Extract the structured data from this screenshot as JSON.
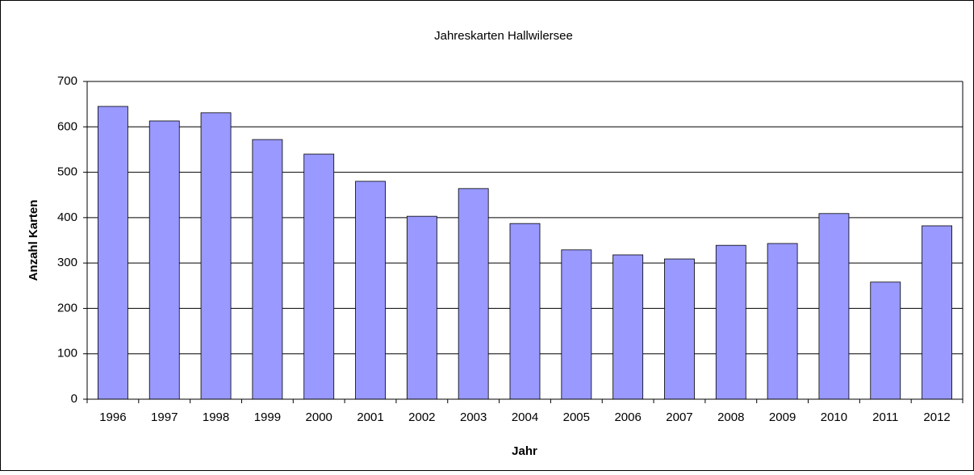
{
  "chart_data": {
    "type": "bar",
    "title": "Jahreskarten Hallwilersee",
    "x_label": "Jahr",
    "y_label": "Anzahl Karten",
    "categories": [
      "1996",
      "1997",
      "1998",
      "1999",
      "2000",
      "2001",
      "2002",
      "2003",
      "2004",
      "2005",
      "2006",
      "2007",
      "2008",
      "2009",
      "2010",
      "2011",
      "2012"
    ],
    "values": [
      645,
      613,
      631,
      572,
      540,
      480,
      403,
      464,
      387,
      329,
      318,
      309,
      339,
      343,
      409,
      258,
      382
    ],
    "color": "#9999ff",
    "ylim": [
      0,
      700
    ],
    "yticks": [
      0,
      100,
      200,
      300,
      400,
      500,
      600,
      700
    ],
    "grid": true
  }
}
